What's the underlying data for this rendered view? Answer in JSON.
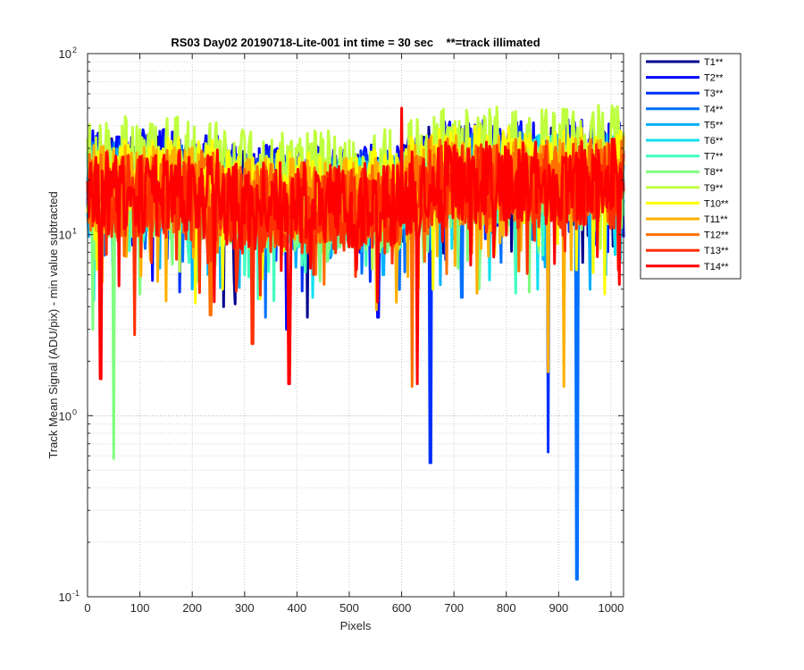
{
  "chart_data": {
    "type": "line",
    "title": "RS03 Day02 20190718-Lite-001 int time = 30 sec    **=track illimated",
    "xlabel": "Pixels",
    "ylabel": "Track Mean Signal (ADU/pix) - min value subtracted",
    "xlim": [
      0,
      1024
    ],
    "ylim": [
      0.1,
      100
    ],
    "yscale": "log",
    "grid": true,
    "minor_grid": true,
    "legend_position": "outside-right",
    "x_ticks": [
      0,
      100,
      200,
      300,
      400,
      500,
      600,
      700,
      800,
      900,
      1000
    ],
    "x_tick_labels": [
      "0",
      "100",
      "200",
      "300",
      "400",
      "500",
      "600",
      "700",
      "800",
      "900",
      "1000"
    ],
    "y_ticks": [
      {
        "value": 0.1,
        "base": "10",
        "exp": "-1"
      },
      {
        "value": 1,
        "base": "10",
        "exp": "0"
      },
      {
        "value": 10,
        "base": "10",
        "exp": "1"
      },
      {
        "value": 100,
        "base": "10",
        "exp": "2"
      }
    ],
    "series": [
      {
        "name": "T1**",
        "color": "#00008f",
        "base": 20,
        "dips": [
          [
            260,
            4.0
          ],
          [
            420,
            3.5
          ]
        ]
      },
      {
        "name": "T2**",
        "color": "#0000ff",
        "base": 22,
        "dips": [
          [
            40,
            30
          ],
          [
            380,
            3.0
          ],
          [
            555,
            3.5
          ]
        ]
      },
      {
        "name": "T3**",
        "color": "#0030ff",
        "base": 20,
        "dips": [
          [
            130,
            38
          ],
          [
            655,
            0.55
          ],
          [
            880,
            0.63
          ]
        ]
      },
      {
        "name": "T4**",
        "color": "#0070ff",
        "base": 19,
        "dips": [
          [
            340,
            3.5
          ],
          [
            935,
            0.125
          ],
          [
            715,
            4.5
          ]
        ]
      },
      {
        "name": "T5**",
        "color": "#00b0ff",
        "base": 18,
        "dips": [
          [
            200,
            5.0
          ],
          [
            565,
            6.0
          ],
          [
            960,
            5.0
          ]
        ]
      },
      {
        "name": "T6**",
        "color": "#10e0f0",
        "base": 18,
        "dips": [
          [
            90,
            6.0
          ],
          [
            430,
            4.5
          ],
          [
            860,
            5.0
          ]
        ]
      },
      {
        "name": "T7**",
        "color": "#40ffc0",
        "base": 17,
        "dips": [
          [
            300,
            6.0
          ],
          [
            620,
            5.5
          ]
        ]
      },
      {
        "name": "T8**",
        "color": "#80ff80",
        "base": 16,
        "dips": [
          [
            50,
            0.58
          ],
          [
            10,
            3.0
          ],
          [
            210,
            5.5
          ]
        ]
      },
      {
        "name": "T9**",
        "color": "#c0ff40",
        "base": 26,
        "dips": [
          [
            660,
            7.0
          ],
          [
            1000,
            40
          ]
        ]
      },
      {
        "name": "T10**",
        "color": "#ffff00",
        "base": 20,
        "dips": [
          [
            258,
            5.0
          ],
          [
            660,
            5.0
          ]
        ]
      },
      {
        "name": "T11**",
        "color": "#ffb000",
        "base": 18,
        "dips": [
          [
            880,
            1.75
          ],
          [
            910,
            1.45
          ]
        ]
      },
      {
        "name": "T12**",
        "color": "#ff7000",
        "base": 17,
        "dips": [
          [
            235,
            3.6
          ],
          [
            620,
            1.45
          ]
        ]
      },
      {
        "name": "T13**",
        "color": "#ff3000",
        "base": 16,
        "dips": [
          [
            90,
            2.8
          ],
          [
            315,
            2.5
          ]
        ]
      },
      {
        "name": "T14**",
        "color": "#ff0000",
        "base": 17,
        "dips": [
          [
            25,
            1.6
          ],
          [
            385,
            1.5
          ],
          [
            600,
            50
          ],
          [
            630,
            1.5
          ],
          [
            670,
            30
          ]
        ]
      }
    ]
  }
}
